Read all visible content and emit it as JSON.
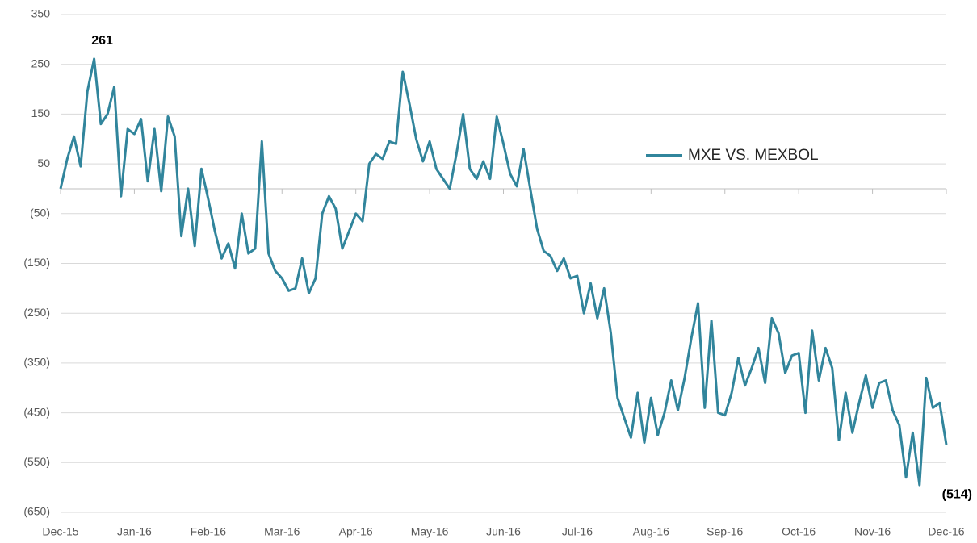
{
  "chart_data": {
    "type": "line",
    "categories": [
      "Dec-15",
      null,
      null,
      null,
      null,
      null,
      null,
      null,
      null,
      null,
      null,
      "Jan-16",
      null,
      null,
      null,
      null,
      null,
      null,
      null,
      null,
      null,
      null,
      "Feb-16",
      null,
      null,
      null,
      null,
      null,
      null,
      null,
      null,
      null,
      null,
      "Mar-16",
      null,
      null,
      null,
      null,
      null,
      null,
      null,
      null,
      null,
      null,
      "Apr-16",
      null,
      null,
      null,
      null,
      null,
      null,
      null,
      null,
      null,
      null,
      "May-16",
      null,
      null,
      null,
      null,
      null,
      null,
      null,
      null,
      null,
      null,
      "Jun-16",
      null,
      null,
      null,
      null,
      null,
      null,
      null,
      null,
      null,
      null,
      "Jul-16",
      null,
      null,
      null,
      null,
      null,
      null,
      null,
      null,
      null,
      null,
      "Aug-16",
      null,
      null,
      null,
      null,
      null,
      null,
      null,
      null,
      null,
      null,
      "Sep-16",
      null,
      null,
      null,
      null,
      null,
      null,
      null,
      null,
      null,
      null,
      "Oct-16",
      null,
      null,
      null,
      null,
      null,
      null,
      null,
      null,
      null,
      null,
      "Nov-16",
      null,
      null,
      null,
      null,
      null,
      null,
      null,
      null,
      null,
      null,
      "Dec-16"
    ],
    "series": [
      {
        "name": "MXE VS. MEXBOL",
        "color": "#31859c",
        "values": [
          0,
          60,
          105,
          45,
          195,
          261,
          130,
          150,
          205,
          -15,
          120,
          110,
          140,
          15,
          120,
          -5,
          145,
          105,
          -95,
          0,
          -115,
          40,
          -20,
          -85,
          -140,
          -110,
          -160,
          -50,
          -130,
          -120,
          95,
          -130,
          -165,
          -180,
          -205,
          -200,
          -140,
          -210,
          -180,
          -50,
          -15,
          -40,
          -120,
          -85,
          -50,
          -65,
          50,
          70,
          60,
          95,
          90,
          235,
          170,
          100,
          55,
          95,
          40,
          20,
          0,
          70,
          150,
          40,
          20,
          55,
          20,
          145,
          90,
          30,
          5,
          80,
          0,
          -80,
          -125,
          -135,
          -165,
          -140,
          -180,
          -175,
          -250,
          -190,
          -260,
          -200,
          -290,
          -420,
          -460,
          -500,
          -410,
          -510,
          -420,
          -495,
          -450,
          -385,
          -445,
          -380,
          -300,
          -230,
          -440,
          -265,
          -450,
          -455,
          -410,
          -340,
          -395,
          -360,
          -320,
          -390,
          -260,
          -290,
          -370,
          -335,
          -330,
          -450,
          -285,
          -385,
          -320,
          -360,
          -505,
          -410,
          -490,
          -430,
          -375,
          -440,
          -390,
          -385,
          -445,
          -475,
          -580,
          -490,
          -595,
          -380,
          -440,
          -430,
          -514
        ],
        "value_labels": [
          null,
          null,
          null,
          null,
          null,
          "261",
          null,
          null,
          null,
          null,
          null,
          null,
          null,
          null,
          null,
          null,
          null,
          null,
          null,
          null,
          null,
          null,
          null,
          null,
          null,
          null,
          null,
          null,
          null,
          null,
          null,
          null,
          null,
          null,
          null,
          null,
          null,
          null,
          null,
          null,
          null,
          null,
          null,
          null,
          null,
          null,
          null,
          null,
          null,
          null,
          null,
          null,
          null,
          null,
          null,
          null,
          null,
          null,
          null,
          null,
          null,
          null,
          null,
          null,
          null,
          null,
          null,
          null,
          null,
          null,
          null,
          null,
          null,
          null,
          null,
          null,
          null,
          null,
          null,
          null,
          null,
          null,
          null,
          null,
          null,
          null,
          null,
          null,
          null,
          null,
          null,
          null,
          null,
          null,
          null,
          null,
          null,
          null,
          null,
          null,
          null,
          null,
          null,
          null,
          null,
          null,
          null,
          null,
          null,
          null,
          null,
          null,
          null,
          null,
          null,
          null,
          null,
          null,
          null,
          null,
          null,
          null,
          null,
          null,
          null,
          null,
          null,
          null,
          null,
          null,
          null,
          null,
          "(514)"
        ]
      }
    ],
    "ylim": [
      -650,
      350
    ],
    "yticks": [
      350,
      250,
      150,
      50,
      {
        "value": -50,
        "label": "(50)"
      },
      {
        "value": -150,
        "label": "(150)"
      },
      {
        "value": -250,
        "label": "(250)"
      },
      {
        "value": -350,
        "label": "(350)"
      },
      {
        "value": -450,
        "label": "(450)"
      },
      {
        "value": -550,
        "label": "(550)"
      },
      {
        "value": -650,
        "label": "(650)"
      }
    ],
    "grid": true,
    "legend": "right"
  }
}
